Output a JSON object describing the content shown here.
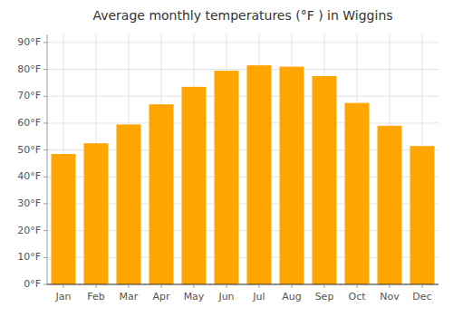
{
  "chart_data": {
    "type": "bar",
    "title": "Average monthly temperatures (°F ) in Wiggins",
    "categories": [
      "Jan",
      "Feb",
      "Mar",
      "Apr",
      "May",
      "Jun",
      "Jul",
      "Aug",
      "Sep",
      "Oct",
      "Nov",
      "Dec"
    ],
    "values": [
      48.5,
      52.5,
      59.5,
      67.0,
      73.5,
      79.5,
      81.5,
      81.0,
      77.5,
      67.5,
      59.0,
      51.5
    ],
    "color": "#FFA500",
    "ylim": [
      0,
      93
    ],
    "yticks": [
      {
        "value": 0,
        "label": "0°F"
      },
      {
        "value": 10,
        "label": "10°F"
      },
      {
        "value": 20,
        "label": "20°F"
      },
      {
        "value": 30,
        "label": "30°F"
      },
      {
        "value": 40,
        "label": "40°F"
      },
      {
        "value": 50,
        "label": "50°F"
      },
      {
        "value": 60,
        "label": "60°F"
      },
      {
        "value": 70,
        "label": "70°F"
      },
      {
        "value": 80,
        "label": "80°F"
      },
      {
        "value": 90,
        "label": "90°F"
      }
    ],
    "grid": true
  }
}
